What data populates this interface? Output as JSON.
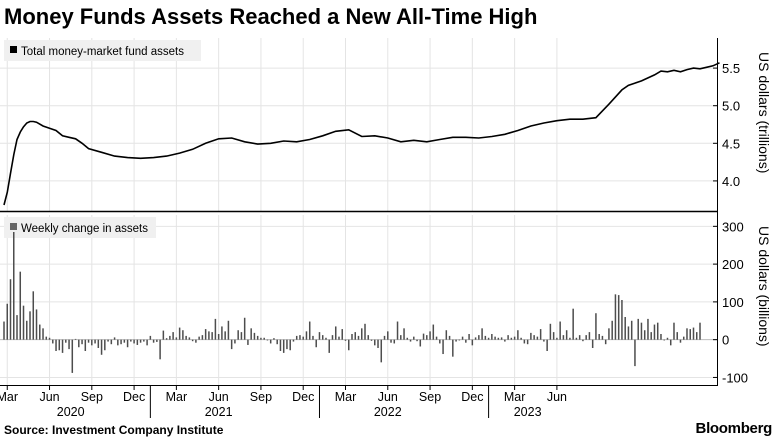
{
  "title": "Money Funds Assets Reached a New All-Time High",
  "source": "Source: Investment Company Institute",
  "brand": "Bloomberg",
  "chart_data": [
    {
      "type": "line",
      "legend": "Total money-market fund assets",
      "ylabel": "US dollars (trillions)",
      "ylim": [
        3.6,
        5.9
      ],
      "yticks": [
        "5.5",
        "5.0",
        "4.5",
        "4.0"
      ],
      "ytick_values": [
        5.5,
        5.0,
        4.5,
        4.0
      ],
      "grid": true,
      "x_weeks": [
        0,
        1,
        2,
        3,
        4,
        5,
        6,
        7,
        8,
        9,
        10,
        12,
        14,
        16,
        18,
        20,
        22,
        24,
        26,
        30,
        34,
        38,
        42,
        46,
        50,
        54,
        58,
        62,
        66,
        70,
        74,
        78,
        82,
        86,
        90,
        94,
        98,
        102,
        106,
        110,
        114,
        118,
        122,
        126,
        130,
        134,
        138,
        142,
        146,
        150,
        154,
        158,
        162,
        166,
        170,
        174,
        178,
        182,
        186,
        190,
        192,
        194,
        196,
        198,
        200,
        202,
        204,
        206,
        208,
        210,
        212,
        214,
        216,
        218,
        220
      ],
      "values": [
        3.68,
        3.85,
        4.1,
        4.35,
        4.55,
        4.65,
        4.72,
        4.77,
        4.79,
        4.79,
        4.78,
        4.73,
        4.7,
        4.67,
        4.6,
        4.58,
        4.56,
        4.5,
        4.43,
        4.38,
        4.33,
        4.31,
        4.3,
        4.31,
        4.33,
        4.37,
        4.42,
        4.5,
        4.56,
        4.57,
        4.52,
        4.49,
        4.5,
        4.53,
        4.52,
        4.55,
        4.6,
        4.66,
        4.68,
        4.59,
        4.6,
        4.57,
        4.52,
        4.54,
        4.52,
        4.55,
        4.58,
        4.58,
        4.57,
        4.59,
        4.62,
        4.67,
        4.73,
        4.77,
        4.8,
        4.82,
        4.82,
        4.84,
        5.02,
        5.21,
        5.27,
        5.3,
        5.33,
        5.37,
        5.41,
        5.46,
        5.45,
        5.47,
        5.45,
        5.48,
        5.5,
        5.49,
        5.51,
        5.53,
        5.57
      ]
    },
    {
      "type": "bar",
      "legend": "Weekly change in assets",
      "ylabel": "US dollars (billions)",
      "ylim": [
        -120,
        330
      ],
      "yticks": [
        "300",
        "200",
        "100",
        "0",
        "-100"
      ],
      "ytick_values": [
        300,
        200,
        100,
        0,
        -100
      ],
      "grid": true,
      "values": [
        48,
        95,
        160,
        285,
        65,
        180,
        90,
        50,
        75,
        128,
        80,
        40,
        30,
        8,
        5,
        -10,
        -30,
        -28,
        -35,
        -8,
        -25,
        -88,
        2,
        -20,
        -12,
        -30,
        -8,
        -15,
        -10,
        -22,
        -40,
        -28,
        -5,
        -12,
        6,
        -15,
        -12,
        -8,
        -20,
        -5,
        -10,
        -14,
        -8,
        -5,
        -15,
        10,
        -8,
        -6,
        -52,
        24,
        4,
        10,
        20,
        6,
        32,
        25,
        10,
        6,
        -4,
        -8,
        8,
        12,
        28,
        22,
        20,
        55,
        15,
        35,
        22,
        50,
        -25,
        -10,
        25,
        20,
        58,
        -14,
        30,
        18,
        10,
        5,
        5,
        -2,
        -10,
        4,
        -12,
        -30,
        -35,
        -25,
        -28,
        -5,
        10,
        12,
        8,
        22,
        48,
        10,
        -20,
        20,
        12,
        5,
        -35,
        12,
        35,
        8,
        28,
        -3,
        -28,
        15,
        20,
        10,
        30,
        42,
        12,
        -3,
        -15,
        -22,
        -60,
        10,
        22,
        -8,
        -10,
        48,
        12,
        30,
        5,
        -5,
        8,
        -4,
        -18,
        16,
        12,
        22,
        40,
        8,
        -10,
        -38,
        25,
        10,
        -45,
        -5,
        -2,
        8,
        -8,
        15,
        -15,
        6,
        12,
        30,
        10,
        5,
        15,
        8,
        5,
        6,
        -5,
        12,
        5,
        8,
        25,
        5,
        -10,
        -12,
        18,
        12,
        8,
        28,
        -5,
        -30,
        42,
        20,
        5,
        48,
        12,
        25,
        5,
        82,
        5,
        12,
        -4,
        12,
        20,
        -22,
        70,
        15,
        10,
        -12,
        30,
        50,
        120,
        118,
        105,
        60,
        35,
        50,
        -70,
        55,
        45,
        25,
        55,
        20,
        40,
        45,
        15,
        -2,
        5,
        -15,
        45,
        20,
        -8,
        8,
        30,
        28,
        32,
        20,
        45
      ]
    }
  ],
  "x_axis": {
    "month_labels": [
      "Mar",
      "Jun",
      "Sep",
      "Dec",
      "Mar",
      "Jun",
      "Sep",
      "Dec",
      "Mar",
      "Jun",
      "Sep",
      "Dec",
      "Mar",
      "Jun"
    ],
    "month_weeks": [
      1,
      14,
      27,
      40,
      53,
      66,
      79,
      92,
      105,
      118,
      131,
      144,
      157,
      170
    ],
    "year_labels": [
      "2020",
      "2021",
      "2022",
      "2023"
    ],
    "year_weeks": [
      20.5,
      66,
      118,
      161
    ],
    "year_boundaries": [
      45,
      97,
      149
    ]
  }
}
